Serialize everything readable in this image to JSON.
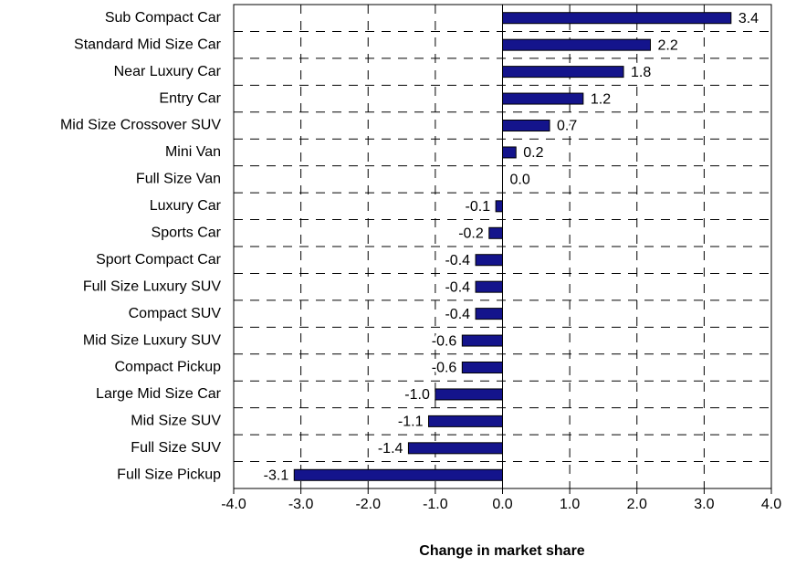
{
  "chart_data": {
    "type": "bar",
    "orientation": "horizontal",
    "x_label": "Change in market share",
    "categories": [
      "Sub Compact Car",
      "Standard Mid Size Car",
      "Near Luxury Car",
      "Entry Car",
      "Mid Size Crossover SUV",
      "Mini Van",
      "Full Size Van",
      "Luxury Car",
      "Sports Car",
      "Sport Compact Car",
      "Full Size Luxury SUV",
      "Compact SUV",
      "Mid Size Luxury SUV",
      "Compact Pickup",
      "Large Mid Size Car",
      "Mid Size SUV",
      "Full Size SUV",
      "Full Size Pickup"
    ],
    "values": [
      3.4,
      2.2,
      1.8,
      1.2,
      0.7,
      0.2,
      0.0,
      -0.1,
      -0.2,
      -0.4,
      -0.4,
      -0.4,
      -0.6,
      -0.6,
      -1.0,
      -1.1,
      -1.4,
      -3.1
    ],
    "value_labels": [
      "3.4",
      "2.2",
      "1.8",
      "1.2",
      "0.7",
      "0.2",
      "0.0",
      "-0.1",
      "-0.2",
      "-0.4",
      "-0.4",
      "-0.4",
      "-0.6",
      "-0.6",
      "-1.0",
      "-1.1",
      "-1.4",
      "-3.1"
    ],
    "color": "#14148c",
    "xlim": [
      -4,
      4
    ],
    "xticks": [
      {
        "value": -4,
        "label": "-4.0"
      },
      {
        "value": -3,
        "label": "-3.0"
      },
      {
        "value": -2,
        "label": "-2.0"
      },
      {
        "value": -1,
        "label": "-1.0"
      },
      {
        "value": 0,
        "label": "0.0"
      },
      {
        "value": 1,
        "label": "1.0"
      },
      {
        "value": 2,
        "label": "2.0"
      },
      {
        "value": 3,
        "label": "3.0"
      },
      {
        "value": 4,
        "label": "4.0"
      }
    ],
    "grid": true
  }
}
